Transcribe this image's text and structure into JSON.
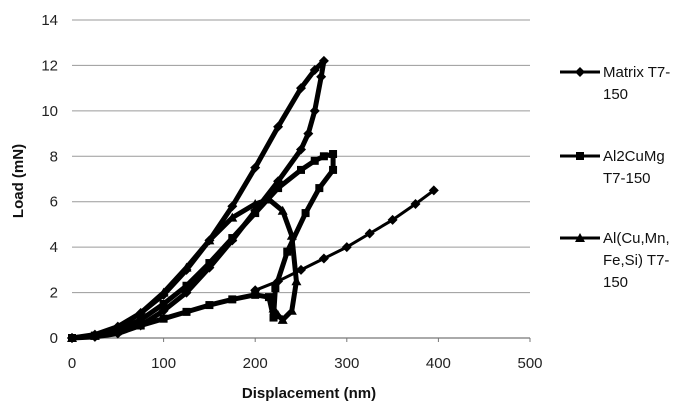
{
  "chart_data": {
    "type": "line",
    "xlabel": "Displacement (nm)",
    "ylabel": "Load (mN)",
    "xlim": [
      0,
      500
    ],
    "ylim": [
      0,
      14
    ],
    "x_ticks": [
      "0",
      "100",
      "200",
      "300",
      "400",
      "500"
    ],
    "y_ticks": [
      "0",
      "2",
      "4",
      "6",
      "8",
      "10",
      "12",
      "14"
    ],
    "grid": "horizontal",
    "legend_position": "right",
    "series": [
      {
        "name": "Matrix T7-150",
        "legend_lines": [
          "Matrix T7-",
          "150"
        ],
        "marker": "diamond",
        "color": "#000000",
        "x": [
          0,
          25,
          50,
          75,
          100,
          125,
          150,
          175,
          200,
          225,
          250,
          265,
          275,
          272,
          265,
          258,
          250,
          225,
          200,
          175,
          150,
          125,
          100,
          75,
          50,
          25,
          0
        ],
        "y": [
          0,
          0.15,
          0.5,
          1.1,
          1.9,
          3.0,
          4.3,
          5.8,
          7.5,
          9.3,
          11.0,
          11.8,
          12.2,
          11.5,
          10.0,
          9.0,
          8.3,
          6.9,
          5.6,
          4.3,
          3.1,
          2.0,
          1.2,
          0.55,
          0.2,
          0.05,
          0
        ]
      },
      {
        "name": "Al2CuMg T7-150",
        "legend_lines": [
          "Al2CuMg",
          "T7-150"
        ],
        "marker": "square",
        "color": "#000000",
        "x": [
          0,
          25,
          50,
          75,
          100,
          125,
          150,
          175,
          200,
          225,
          250,
          265,
          275,
          285,
          285,
          270,
          255,
          235,
          222,
          220,
          215,
          200,
          175,
          150,
          125,
          100,
          75,
          50,
          25,
          0
        ],
        "y": [
          0,
          0.1,
          0.35,
          0.8,
          1.5,
          2.3,
          3.3,
          4.4,
          5.5,
          6.6,
          7.4,
          7.8,
          8.0,
          8.1,
          7.4,
          6.6,
          5.5,
          3.8,
          2.2,
          0.9,
          1.8,
          1.9,
          1.7,
          1.45,
          1.15,
          0.85,
          0.55,
          0.3,
          0.1,
          0
        ]
      },
      {
        "name": "Al(Cu,Mn,Fe,Si) T7-150",
        "legend_lines": [
          "Al(Cu,Mn,",
          "Fe,Si) T7-",
          "150"
        ],
        "marker": "triangle",
        "color": "#000000",
        "x": [
          0,
          25,
          50,
          75,
          100,
          125,
          150,
          175,
          200,
          215,
          230,
          240,
          245,
          240,
          230,
          225,
          220
        ],
        "y": [
          0,
          0.1,
          0.45,
          1.1,
          2.0,
          3.1,
          4.3,
          5.3,
          5.9,
          6.1,
          5.6,
          4.5,
          2.5,
          1.2,
          0.8,
          1.0,
          1.3
        ]
      },
      {
        "name": "",
        "marker": "diamond",
        "color": "#000000",
        "x": [
          200,
          225,
          250,
          275,
          300,
          325,
          350,
          375,
          395
        ],
        "y": [
          2.1,
          2.5,
          3.0,
          3.5,
          4.0,
          4.6,
          5.2,
          5.9,
          6.5
        ]
      }
    ]
  }
}
